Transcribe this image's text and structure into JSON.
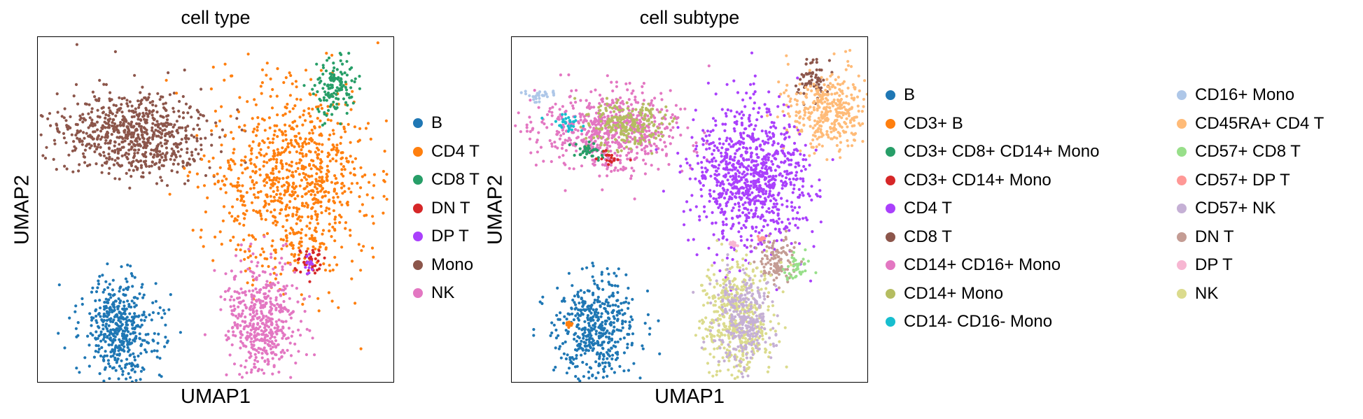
{
  "panels": [
    {
      "title": "cell type",
      "xlabel": "UMAP1",
      "ylabel": "UMAP2",
      "legend": [
        {
          "label": "B",
          "color": "#1f77b4"
        },
        {
          "label": "CD4 T",
          "color": "#ff7f0e"
        },
        {
          "label": "CD8 T",
          "color": "#279e68"
        },
        {
          "label": "DN T",
          "color": "#d62728"
        },
        {
          "label": "DP T",
          "color": "#aa40fc"
        },
        {
          "label": "Mono",
          "color": "#8c564b"
        },
        {
          "label": "NK",
          "color": "#e377c2"
        }
      ]
    },
    {
      "title": "cell subtype",
      "xlabel": "UMAP1",
      "ylabel": "UMAP2",
      "legend": [
        {
          "label": "B",
          "color": "#1f77b4"
        },
        {
          "label": "CD3+ B",
          "color": "#ff7f0e"
        },
        {
          "label": "CD3+ CD8+ CD14+ Mono",
          "color": "#279e68"
        },
        {
          "label": "CD3+ CD14+ Mono",
          "color": "#d62728"
        },
        {
          "label": "CD4 T",
          "color": "#aa40fc"
        },
        {
          "label": "CD8 T",
          "color": "#8c564b"
        },
        {
          "label": "CD14+ CD16+ Mono",
          "color": "#e377c2"
        },
        {
          "label": "CD14+ Mono",
          "color": "#b5bd61"
        },
        {
          "label": "CD14- CD16- Mono",
          "color": "#17becf"
        },
        {
          "label": "CD16+ Mono",
          "color": "#aec7e8"
        },
        {
          "label": "CD45RA+ CD4 T",
          "color": "#ffbb78"
        },
        {
          "label": "CD57+ CD8 T",
          "color": "#98df8a"
        },
        {
          "label": "CD57+ DP T",
          "color": "#ff9896"
        },
        {
          "label": "CD57+ NK",
          "color": "#c5b0d5"
        },
        {
          "label": "DN T",
          "color": "#c49c94"
        },
        {
          "label": "DP T",
          "color": "#f7b6d2"
        },
        {
          "label": "NK",
          "color": "#dbdb8d"
        }
      ]
    }
  ],
  "chart_data": [
    {
      "type": "scatter",
      "title": "cell type",
      "xlabel": "UMAP1",
      "ylabel": "UMAP2",
      "grid": false,
      "ticks": false,
      "legend_position": "right",
      "point_size": "small",
      "clusters": [
        {
          "category": "Mono",
          "center": [
            0.27,
            0.28
          ],
          "approx_extent": [
            0.37,
            0.22
          ],
          "color": "#8c564b"
        },
        {
          "category": "CD4 T",
          "center": [
            0.72,
            0.42
          ],
          "approx_extent": [
            0.4,
            0.5
          ],
          "color": "#ff7f0e"
        },
        {
          "category": "CD8 T",
          "center": [
            0.83,
            0.15
          ],
          "approx_extent": [
            0.1,
            0.15
          ],
          "color": "#279e68"
        },
        {
          "category": "DN T",
          "center": [
            0.76,
            0.65
          ],
          "approx_extent": [
            0.07,
            0.07
          ],
          "color": "#d62728"
        },
        {
          "category": "DP T",
          "center": [
            0.76,
            0.66
          ],
          "approx_extent": [
            0.02,
            0.05
          ],
          "color": "#aa40fc"
        },
        {
          "category": "NK",
          "center": [
            0.63,
            0.82
          ],
          "approx_extent": [
            0.18,
            0.3
          ],
          "color": "#e377c2"
        },
        {
          "category": "B",
          "center": [
            0.23,
            0.84
          ],
          "approx_extent": [
            0.2,
            0.26
          ],
          "color": "#1f77b4"
        }
      ]
    },
    {
      "type": "scatter",
      "title": "cell subtype",
      "xlabel": "UMAP1",
      "ylabel": "UMAP2",
      "grid": false,
      "ticks": false,
      "legend_position": "right",
      "point_size": "small",
      "clusters": [
        {
          "category": "CD14+ CD16+ Mono",
          "center": [
            0.28,
            0.27
          ],
          "approx_extent": [
            0.36,
            0.2
          ],
          "color": "#e377c2"
        },
        {
          "category": "CD14+ Mono",
          "center": [
            0.32,
            0.25
          ],
          "approx_extent": [
            0.2,
            0.12
          ],
          "color": "#b5bd61"
        },
        {
          "category": "CD16+ Mono",
          "center": [
            0.08,
            0.17
          ],
          "approx_extent": [
            0.08,
            0.04
          ],
          "color": "#aec7e8"
        },
        {
          "category": "CD14- CD16- Mono",
          "center": [
            0.16,
            0.25
          ],
          "approx_extent": [
            0.08,
            0.04
          ],
          "color": "#17becf"
        },
        {
          "category": "CD3+ CD8+ CD14+ Mono",
          "center": [
            0.22,
            0.33
          ],
          "approx_extent": [
            0.08,
            0.05
          ],
          "color": "#279e68"
        },
        {
          "category": "CD3+ CD14+ Mono",
          "center": [
            0.28,
            0.35
          ],
          "approx_extent": [
            0.05,
            0.04
          ],
          "color": "#d62728"
        },
        {
          "category": "CD8 T",
          "center": [
            0.84,
            0.12
          ],
          "approx_extent": [
            0.08,
            0.1
          ],
          "color": "#8c564b"
        },
        {
          "category": "CD45RA+ CD4 T",
          "center": [
            0.88,
            0.22
          ],
          "approx_extent": [
            0.2,
            0.2
          ],
          "color": "#ffbb78"
        },
        {
          "category": "CD4 T",
          "center": [
            0.67,
            0.41
          ],
          "approx_extent": [
            0.28,
            0.38
          ],
          "color": "#aa40fc"
        },
        {
          "category": "DN T",
          "center": [
            0.74,
            0.64
          ],
          "approx_extent": [
            0.1,
            0.12
          ],
          "color": "#c49c94"
        },
        {
          "category": "CD57+ CD8 T",
          "center": [
            0.8,
            0.66
          ],
          "approx_extent": [
            0.06,
            0.07
          ],
          "color": "#98df8a"
        },
        {
          "category": "NK",
          "center": [
            0.63,
            0.82
          ],
          "approx_extent": [
            0.18,
            0.3
          ],
          "color": "#dbdb8d"
        },
        {
          "category": "CD57+ NK",
          "center": [
            0.65,
            0.82
          ],
          "approx_extent": [
            0.14,
            0.24
          ],
          "color": "#c5b0d5"
        },
        {
          "category": "B",
          "center": [
            0.23,
            0.84
          ],
          "approx_extent": [
            0.2,
            0.26
          ],
          "color": "#1f77b4"
        },
        {
          "category": "CD3+ B",
          "center": [
            0.16,
            0.83
          ],
          "approx_extent": [
            0.02,
            0.02
          ],
          "color": "#ff7f0e"
        },
        {
          "category": "CD57+ DP T",
          "center": [
            0.7,
            0.58
          ],
          "approx_extent": [
            0.02,
            0.02
          ],
          "color": "#ff9896"
        },
        {
          "category": "DP T",
          "center": [
            0.62,
            0.6
          ],
          "approx_extent": [
            0.02,
            0.02
          ],
          "color": "#f7b6d2"
        }
      ]
    }
  ]
}
